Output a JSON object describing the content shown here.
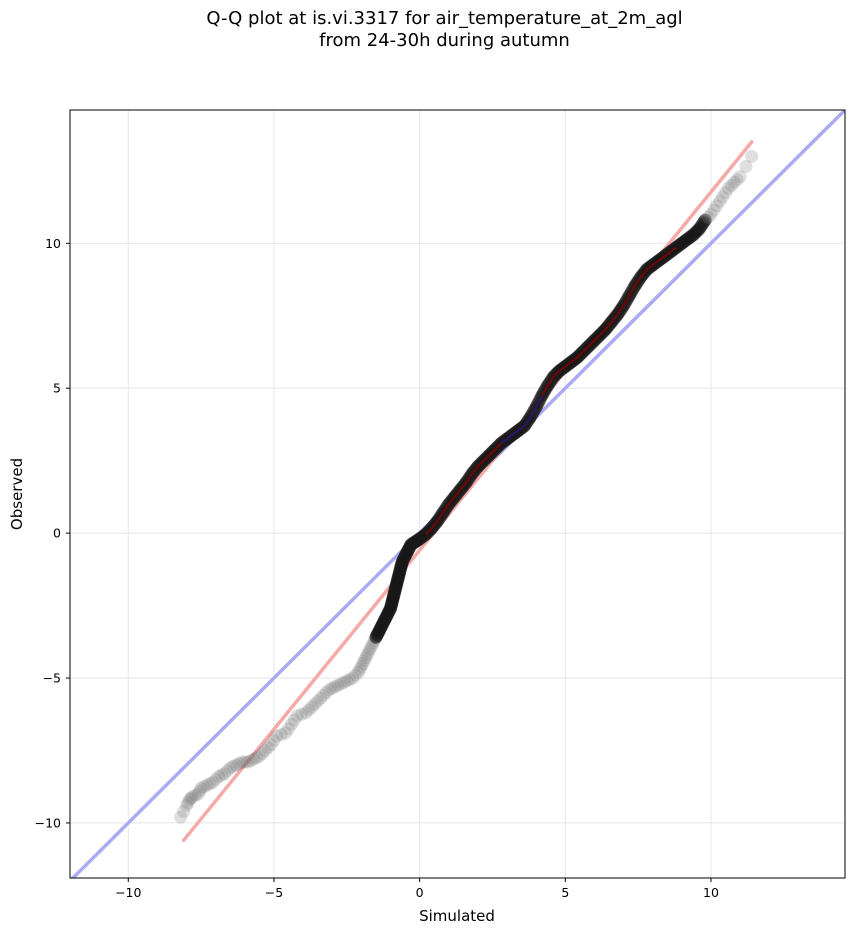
{
  "chart_data": {
    "type": "scatter",
    "title": "Q-Q plot at is.vi.3317 for air_temperature_at_2m_agl",
    "subtitle": "from 24-30h during autumn",
    "xlabel": "Simulated",
    "ylabel": "Observed",
    "xlim": [
      -12,
      14.6
    ],
    "ylim": [
      -11.9,
      14.6
    ],
    "x_ticks": [
      -10,
      -5,
      0,
      5,
      10
    ],
    "y_ticks": [
      -10,
      -5,
      0,
      5,
      10
    ],
    "x_tick_labels": [
      "−10",
      "−5",
      "0",
      "5",
      "10"
    ],
    "y_tick_labels": [
      "−10",
      "−5",
      "0",
      "5",
      "10"
    ],
    "grid": true,
    "reference_line": {
      "slope": 1,
      "intercept": 0,
      "color": "#aaaaf5"
    },
    "fit_line": {
      "x": [
        -8.1,
        11.4
      ],
      "y": [
        -10.6,
        13.5
      ],
      "color": "#f5a9a9"
    },
    "highlight_segments": [
      {
        "color": "#8b0000",
        "x": [
          0.2,
          8.8
        ]
      },
      {
        "color": "#1a1a8c",
        "x": [
          2.8,
          4.3
        ]
      }
    ],
    "points": [
      [
        -8.2,
        -9.8
      ],
      [
        -8.0,
        -9.4
      ],
      [
        -7.9,
        -9.2
      ],
      [
        -7.8,
        -9.1
      ],
      [
        -7.6,
        -9.0
      ],
      [
        -7.5,
        -8.8
      ],
      [
        -7.3,
        -8.7
      ],
      [
        -7.1,
        -8.6
      ],
      [
        -6.9,
        -8.4
      ],
      [
        -6.7,
        -8.3
      ],
      [
        -6.5,
        -8.1
      ],
      [
        -6.3,
        -8.0
      ],
      [
        -6.1,
        -7.9
      ],
      [
        -5.9,
        -7.9
      ],
      [
        -5.7,
        -7.8
      ],
      [
        -5.5,
        -7.7
      ],
      [
        -5.3,
        -7.5
      ],
      [
        -5.1,
        -7.3
      ],
      [
        -4.9,
        -7.0
      ],
      [
        -4.6,
        -6.9
      ],
      [
        -4.4,
        -6.6
      ],
      [
        -4.2,
        -6.3
      ],
      [
        -3.9,
        -6.2
      ],
      [
        -3.7,
        -6.0
      ],
      [
        -3.5,
        -5.8
      ],
      [
        -3.3,
        -5.6
      ],
      [
        -3.1,
        -5.4
      ],
      [
        -2.9,
        -5.3
      ],
      [
        -2.7,
        -5.2
      ],
      [
        -2.5,
        -5.1
      ],
      [
        -2.3,
        -5.0
      ],
      [
        -2.1,
        -4.8
      ],
      [
        -2.0,
        -4.6
      ],
      [
        -1.9,
        -4.4
      ],
      [
        -1.8,
        -4.2
      ],
      [
        -1.7,
        -4.0
      ],
      [
        -1.6,
        -3.8
      ],
      [
        -1.5,
        -3.6
      ],
      [
        -1.4,
        -3.4
      ],
      [
        -1.3,
        -3.2
      ],
      [
        -1.2,
        -3.0
      ],
      [
        -1.1,
        -2.8
      ],
      [
        -1.0,
        -2.6
      ],
      [
        -0.95,
        -2.4
      ],
      [
        -0.9,
        -2.2
      ],
      [
        -0.85,
        -2.0
      ],
      [
        -0.8,
        -1.8
      ],
      [
        -0.75,
        -1.6
      ],
      [
        -0.7,
        -1.4
      ],
      [
        -0.65,
        -1.2
      ],
      [
        -0.6,
        -1.0
      ],
      [
        -0.5,
        -0.8
      ],
      [
        -0.4,
        -0.6
      ],
      [
        -0.3,
        -0.4
      ],
      [
        -0.15,
        -0.3
      ],
      [
        0.0,
        -0.2
      ],
      [
        0.2,
        -0.05
      ],
      [
        0.4,
        0.15
      ],
      [
        0.6,
        0.4
      ],
      [
        0.8,
        0.7
      ],
      [
        1.0,
        1.0
      ],
      [
        1.2,
        1.25
      ],
      [
        1.4,
        1.5
      ],
      [
        1.6,
        1.75
      ],
      [
        1.8,
        2.05
      ],
      [
        2.0,
        2.3
      ],
      [
        2.2,
        2.5
      ],
      [
        2.4,
        2.7
      ],
      [
        2.6,
        2.9
      ],
      [
        2.8,
        3.1
      ],
      [
        3.0,
        3.25
      ],
      [
        3.2,
        3.4
      ],
      [
        3.4,
        3.55
      ],
      [
        3.6,
        3.7
      ],
      [
        3.8,
        4.0
      ],
      [
        4.0,
        4.35
      ],
      [
        4.2,
        4.75
      ],
      [
        4.4,
        5.1
      ],
      [
        4.6,
        5.4
      ],
      [
        4.8,
        5.6
      ],
      [
        5.0,
        5.75
      ],
      [
        5.2,
        5.9
      ],
      [
        5.4,
        6.05
      ],
      [
        5.6,
        6.25
      ],
      [
        5.8,
        6.45
      ],
      [
        6.0,
        6.65
      ],
      [
        6.2,
        6.85
      ],
      [
        6.4,
        7.05
      ],
      [
        6.6,
        7.3
      ],
      [
        6.8,
        7.55
      ],
      [
        7.0,
        7.85
      ],
      [
        7.2,
        8.2
      ],
      [
        7.4,
        8.55
      ],
      [
        7.6,
        8.85
      ],
      [
        7.8,
        9.1
      ],
      [
        8.0,
        9.25
      ],
      [
        8.2,
        9.4
      ],
      [
        8.4,
        9.55
      ],
      [
        8.6,
        9.7
      ],
      [
        8.8,
        9.85
      ],
      [
        9.0,
        10.0
      ],
      [
        9.2,
        10.15
      ],
      [
        9.4,
        10.3
      ],
      [
        9.6,
        10.5
      ],
      [
        9.8,
        10.8
      ],
      [
        10.0,
        11.0
      ],
      [
        10.2,
        11.3
      ],
      [
        10.4,
        11.6
      ],
      [
        10.6,
        11.9
      ],
      [
        10.8,
        12.1
      ],
      [
        11.0,
        12.3
      ],
      [
        11.4,
        13.0
      ]
    ]
  }
}
